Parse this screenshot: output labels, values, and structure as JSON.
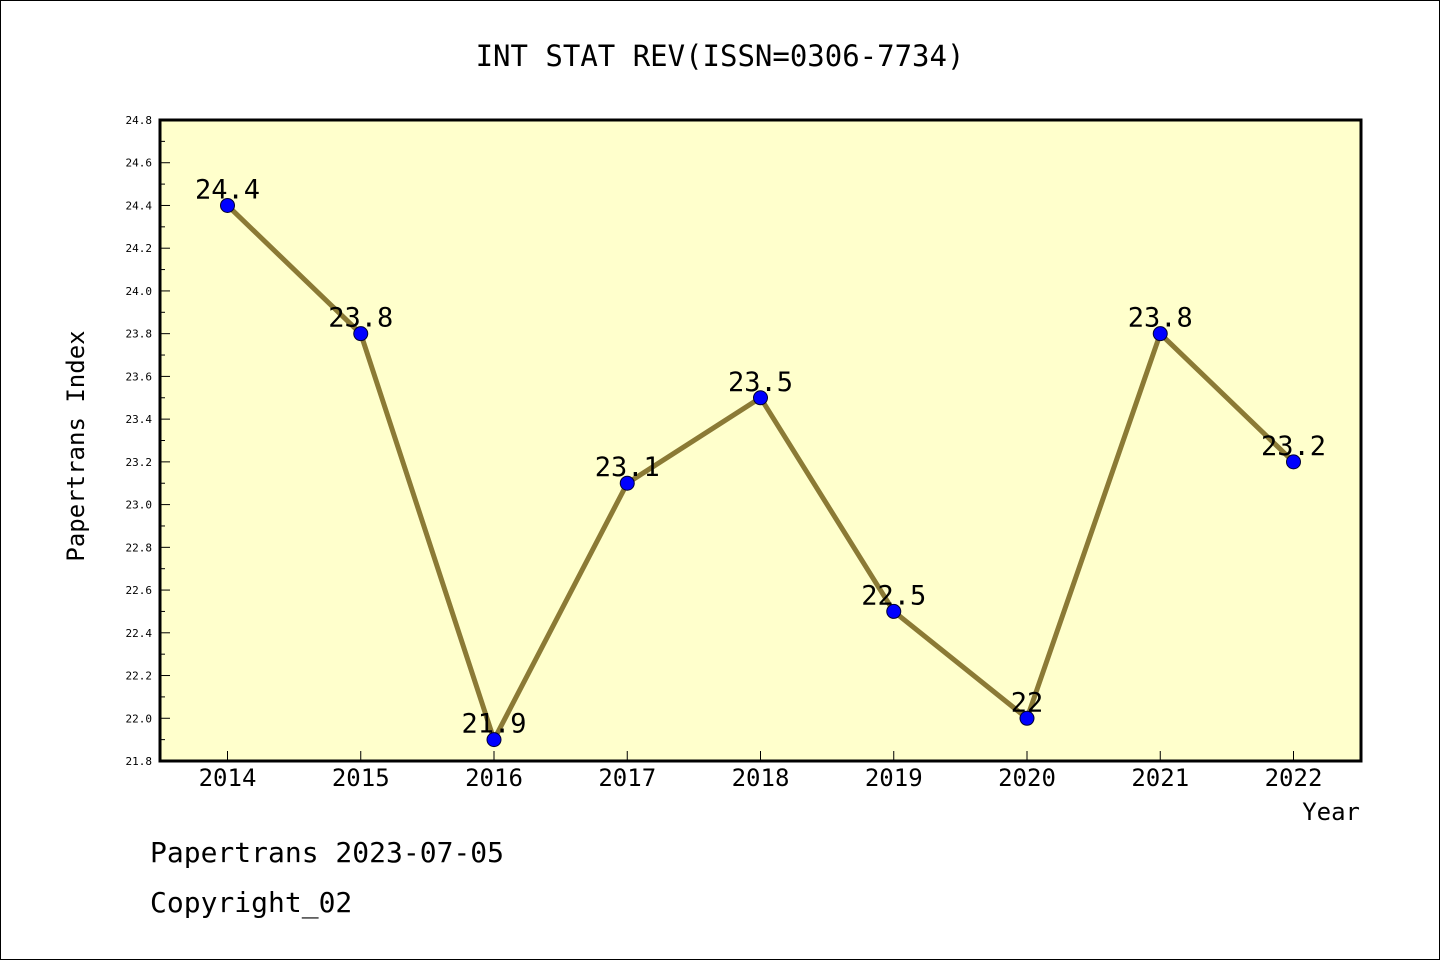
{
  "chart_data": {
    "type": "line",
    "title": "INT STAT REV(ISSN=0306-7734)",
    "xlabel": "Year",
    "ylabel": "Papertrans Index",
    "categories": [
      "2014",
      "2015",
      "2016",
      "2017",
      "2018",
      "2019",
      "2020",
      "2021",
      "2022"
    ],
    "values": [
      24.4,
      23.8,
      21.9,
      23.1,
      23.5,
      22.5,
      22.0,
      23.8,
      23.2
    ],
    "data_labels": [
      "24.4",
      "23.8",
      "21.9",
      "23.1",
      "23.5",
      "22.5",
      "22",
      "23.8",
      "23.2"
    ],
    "ylim": [
      21.8,
      24.8
    ],
    "yticks": [
      "21.8",
      "22.0",
      "22.2",
      "22.4",
      "22.6",
      "22.8",
      "23.0",
      "23.2",
      "23.4",
      "23.6",
      "23.8",
      "24.0",
      "24.2",
      "24.4",
      "24.6",
      "24.8"
    ],
    "grid": false,
    "colors": {
      "plot_background": "#ffffcc",
      "line": "#8b7a35",
      "marker": "#0000ff"
    }
  },
  "footer": {
    "line1": "Papertrans 2023-07-05",
    "line2": "Copyright_02"
  }
}
